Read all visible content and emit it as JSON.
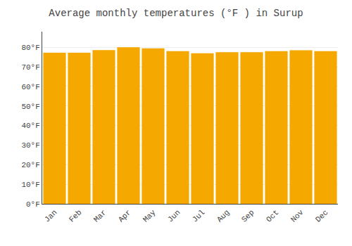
{
  "chart_data": {
    "type": "bar",
    "title": "Average monthly temperatures (°F ) in Surup",
    "categories": [
      "Jan",
      "Feb",
      "Mar",
      "Apr",
      "May",
      "Jun",
      "Jul",
      "Aug",
      "Sep",
      "Oct",
      "Nov",
      "Dec"
    ],
    "values": [
      77.2,
      77.2,
      78.6,
      80.0,
      79.5,
      78.0,
      77.0,
      77.5,
      77.5,
      78.0,
      78.5,
      78.0
    ],
    "color": "#F5A800",
    "ylim": [
      0,
      88
    ],
    "yticks": [
      {
        "value": 0,
        "label": "0°F"
      },
      {
        "value": 10,
        "label": "10°F"
      },
      {
        "value": 20,
        "label": "20°F"
      },
      {
        "value": 30,
        "label": "30°F"
      },
      {
        "value": 40,
        "label": "40°F"
      },
      {
        "value": 50,
        "label": "50°F"
      },
      {
        "value": 60,
        "label": "60°F"
      },
      {
        "value": 70,
        "label": "70°F"
      },
      {
        "value": 80,
        "label": "80°F"
      }
    ],
    "grid": true
  }
}
